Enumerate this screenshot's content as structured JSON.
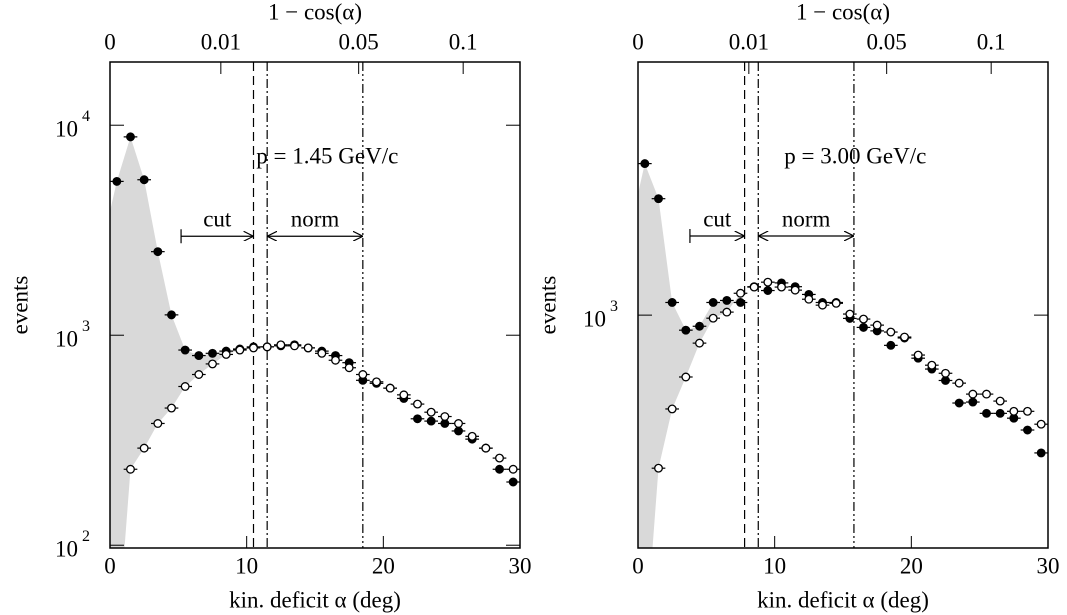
{
  "chart_data": [
    {
      "type": "scatter",
      "xlabel": "kin. deficit  α (deg)",
      "ylabel": "events",
      "x2label": "1 − cos(α)",
      "label": "p = 1.45 GeV/c",
      "log_y": true,
      "x2_scale": "one_minus_cos",
      "xlim": [
        0,
        30
      ],
      "xticks": [
        0,
        10,
        20,
        30
      ],
      "x2ticks": [
        0,
        0.01,
        0.05,
        0.1
      ],
      "ylim": [
        97,
        20000
      ],
      "yticks": [
        {
          "value": 100,
          "label": "10",
          "exponent": "2"
        },
        {
          "value": 1000,
          "label": "10",
          "exponent": "3"
        },
        {
          "value": 10000,
          "label": "10",
          "exponent": "4"
        }
      ],
      "x": [
        0.5,
        1.5,
        2.5,
        3.5,
        4.5,
        5.5,
        6.5,
        7.5,
        8.5,
        9.5,
        10.5,
        11.5,
        12.5,
        13.5,
        14.5,
        15.5,
        16.5,
        17.5,
        18.5,
        19.5,
        20.5,
        21.5,
        22.5,
        23.5,
        24.5,
        25.5,
        26.5,
        27.5,
        28.5,
        29.5
      ],
      "series": [
        {
          "color": "#000000",
          "marker_fill": "#000000",
          "values": [
            5400,
            8800,
            5500,
            2500,
            1250,
            850,
            800,
            820,
            840,
            860,
            880,
            880,
            890,
            900,
            870,
            840,
            800,
            740,
            610,
            590,
            560,
            500,
            400,
            390,
            380,
            350,
            320,
            290,
            230,
            200
          ]
        },
        {
          "color": "#000000",
          "marker_fill": "#ffffff",
          "values": [
            null,
            230,
            290,
            380,
            450,
            570,
            650,
            730,
            810,
            850,
            870,
            880,
            900,
            890,
            870,
            820,
            760,
            700,
            650,
            600,
            560,
            520,
            470,
            430,
            410,
            380,
            330,
            290,
            260,
            230
          ]
        }
      ],
      "shade": {
        "color": "#d9d9d9"
      },
      "vlines": [
        {
          "value": 10.5,
          "style": "dashed"
        },
        {
          "value": 11.5,
          "style": "dashdot"
        },
        {
          "value": 18.5,
          "style": "dashdotdot"
        }
      ],
      "annotations": [
        {
          "text": "cut",
          "from": 5.2,
          "to": 10.5,
          "y": 2960,
          "arrow": "right"
        },
        {
          "text": "norm",
          "from": 11.5,
          "to": 18.5,
          "y": 2960,
          "arrow": "both"
        }
      ]
    },
    {
      "type": "scatter",
      "xlabel": "kin. deficit  α (deg)",
      "ylabel": "events",
      "x2label": "1 − cos(α)",
      "label": "p = 3.00 GeV/c",
      "log_y": true,
      "x2_scale": "one_minus_cos",
      "xlim": [
        0,
        30
      ],
      "xticks": [
        0,
        10,
        20,
        30
      ],
      "x2ticks": [
        0,
        0.01,
        0.05,
        0.1
      ],
      "ylim": [
        342,
        3210
      ],
      "yticks": [
        {
          "value": 1000,
          "label": "10",
          "exponent": "3"
        }
      ],
      "x": [
        0.5,
        1.5,
        2.5,
        3.5,
        4.5,
        5.5,
        6.5,
        7.5,
        8.5,
        9.5,
        10.5,
        11.5,
        12.5,
        13.5,
        14.5,
        15.5,
        16.5,
        17.5,
        18.5,
        19.5,
        20.5,
        21.5,
        22.5,
        23.5,
        24.5,
        25.5,
        26.5,
        27.5,
        28.5,
        29.5
      ],
      "series": [
        {
          "color": "#000000",
          "marker_fill": "#000000",
          "values": [
            2010,
            1710,
            1060,
            933,
            950,
            1060,
            1070,
            1060,
            1140,
            1120,
            1160,
            1140,
            1100,
            1060,
            1060,
            985,
            945,
            930,
            870,
            900,
            820,
            780,
            740,
            667,
            670,
            636,
            636,
            622,
            589,
            530
          ]
        },
        {
          "color": "#000000",
          "marker_fill": "#ffffff",
          "values": [
            null,
            494,
            649,
            752,
            879,
            986,
            1014,
            1106,
            1138,
            1164,
            1138,
            1122,
            1076,
            1047,
            1056,
            1005,
            982,
            955,
            925,
            904,
            832,
            794,
            765,
            731,
            695,
            695,
            673,
            642,
            642,
            605
          ]
        }
      ],
      "shade": {
        "color": "#d9d9d9"
      },
      "vlines": [
        {
          "value": 7.8,
          "style": "dashed"
        },
        {
          "value": 8.8,
          "style": "dashdot"
        },
        {
          "value": 15.8,
          "style": "dashdotdot"
        }
      ],
      "annotations": [
        {
          "text": "cut",
          "from": 3.8,
          "to": 7.8,
          "y": 1440,
          "arrow": "right"
        },
        {
          "text": "norm",
          "from": 8.8,
          "to": 15.8,
          "y": 1440,
          "arrow": "both"
        }
      ]
    }
  ]
}
